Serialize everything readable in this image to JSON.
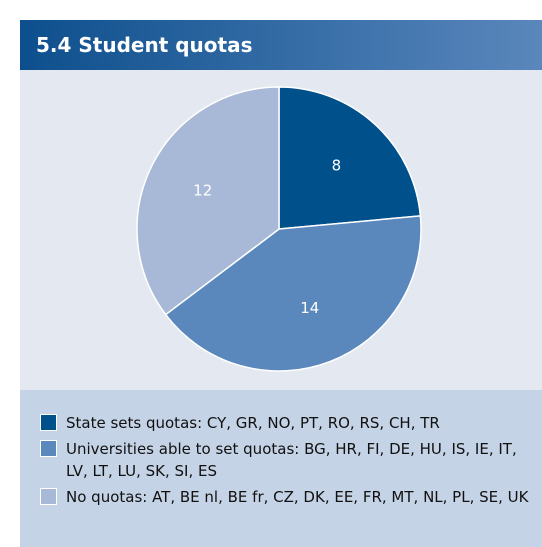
{
  "chart_data": {
    "type": "pie",
    "title": "5.4 Student quotas",
    "categories": [
      "State sets quotas: CY, GR, NO, PT, RO, RS, CH, TR",
      "Universities able to set quotas: BG, HR, FI, DE, HU, IS, IE, IT, LV, LT, LU, SK, SI, ES",
      "No quotas: AT, BE nl, BE fr, CZ, DK, EE, FR, MT, NL, PL, SE, UK"
    ],
    "values": [
      8,
      14,
      12
    ],
    "colors": [
      "#00508c",
      "#5a87bc",
      "#a7b9d6"
    ]
  }
}
